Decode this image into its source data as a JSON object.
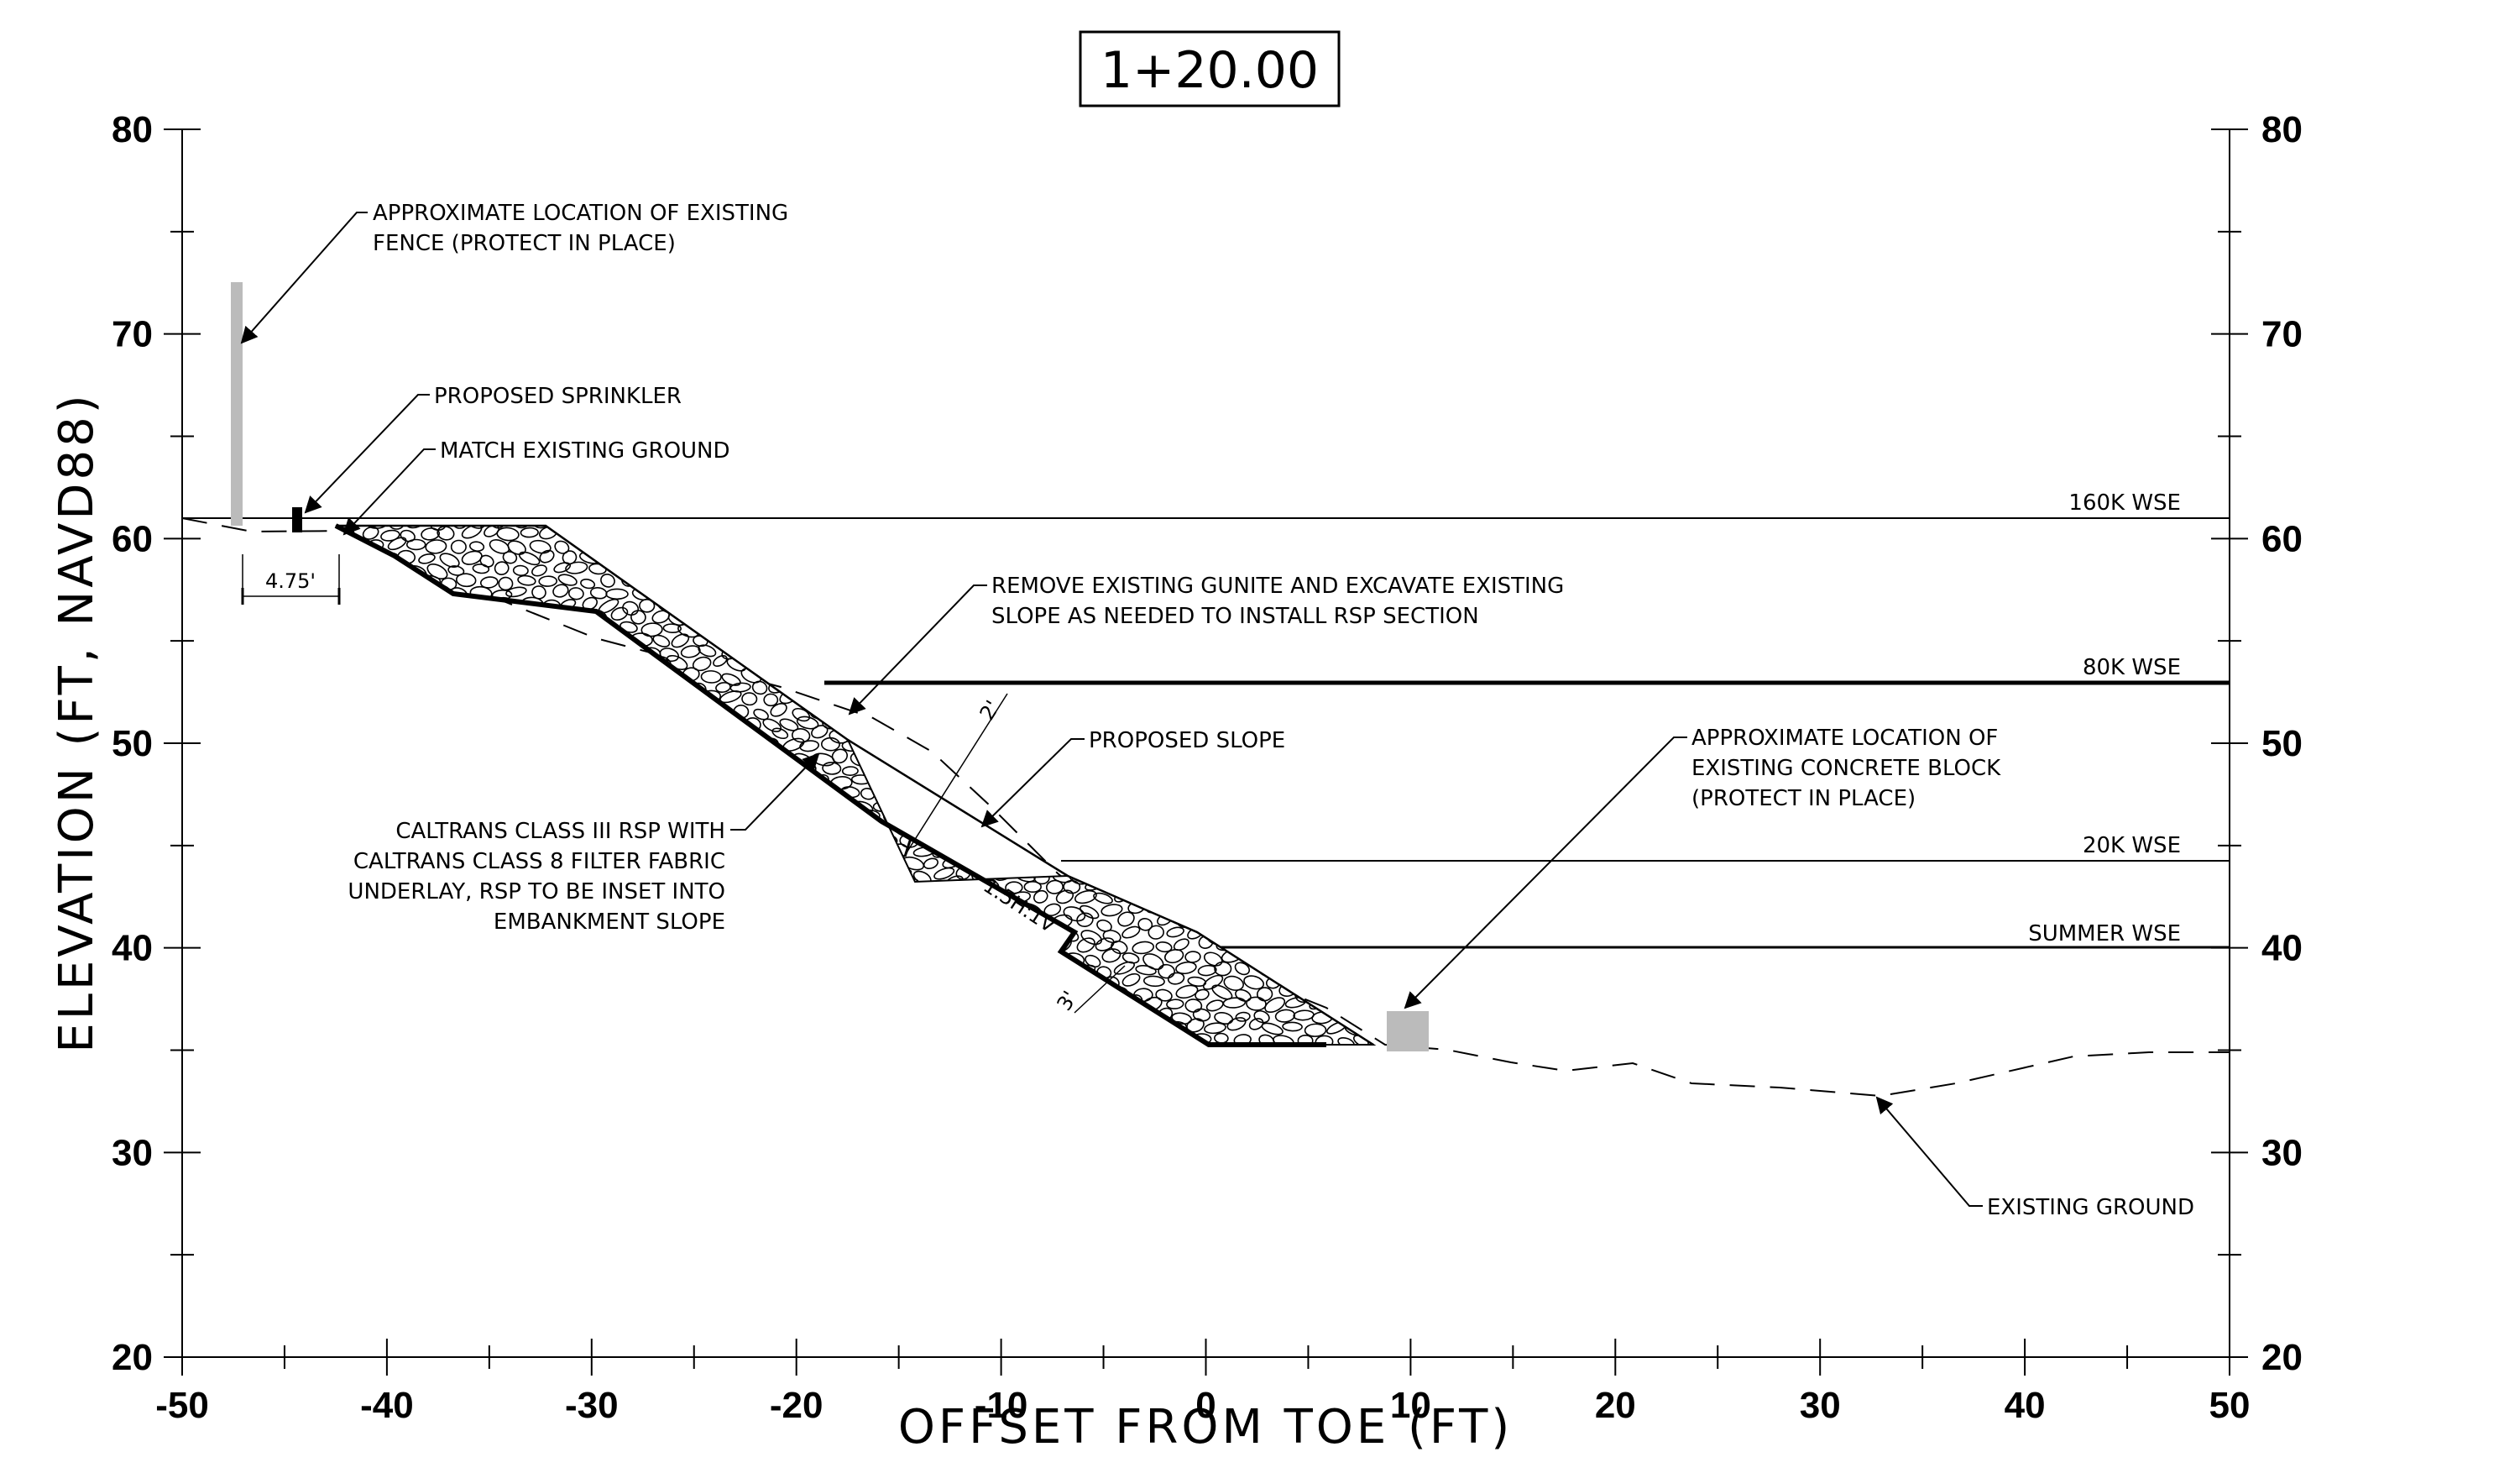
{
  "title": "1+20.00",
  "axes": {
    "x_title": "OFFSET FROM TOE (FT)",
    "y_title": "ELEVATION (FT, NAVD88)",
    "x_ticks": [
      "-50",
      "-40",
      "-30",
      "-20",
      "-10",
      "0",
      "10",
      "20",
      "30",
      "40",
      "50"
    ],
    "y_ticks": [
      "80",
      "70",
      "60",
      "50",
      "40",
      "30",
      "20"
    ],
    "xlim": [
      -50,
      50
    ],
    "ylim": [
      20,
      80
    ]
  },
  "water_surfaces": [
    {
      "label": "160K WSE",
      "elevation": 61,
      "from_offset": -50,
      "weight": "thin"
    },
    {
      "label": "80K WSE",
      "elevation": 53,
      "from_offset": -18.5,
      "weight": "heavy"
    },
    {
      "label": "20K WSE",
      "elevation": 44.3,
      "from_offset": -7,
      "weight": "thin"
    },
    {
      "label": "SUMMER WSE",
      "elevation": 40,
      "from_offset": 0.5,
      "weight": "medium"
    }
  ],
  "callouts": {
    "fence": [
      "APPROXIMATE LOCATION OF EXISTING",
      "FENCE (PROTECT IN PLACE)"
    ],
    "sprinkler": [
      "PROPOSED SPRINKLER"
    ],
    "match_ground": [
      "MATCH EXISTING GROUND"
    ],
    "remove_gunite": [
      "REMOVE EXISTING GUNITE AND EXCAVATE EXISTING",
      "SLOPE AS NEEDED TO INSTALL RSP SECTION"
    ],
    "proposed_slope": [
      "PROPOSED SLOPE"
    ],
    "rsp": [
      "CALTRANS CLASS III RSP WITH",
      "CALTRANS CLASS 8 FILTER FABRIC",
      "UNDERLAY, RSP TO BE INSET INTO",
      "EMBANKMENT SLOPE"
    ],
    "concrete_block": [
      "APPROXIMATE LOCATION OF",
      "EXISTING CONCRETE BLOCK",
      "(PROTECT IN PLACE)"
    ],
    "existing_ground": [
      "EXISTING GROUND"
    ]
  },
  "dimensions": {
    "fence_offset": "4.75'",
    "rsp_thickness_top": "2'",
    "toe_thickness": "3'",
    "slope_ratio": "1.5H:1V"
  },
  "colors": {
    "line": "#000000",
    "existing_feature": "#bbbbbb"
  }
}
